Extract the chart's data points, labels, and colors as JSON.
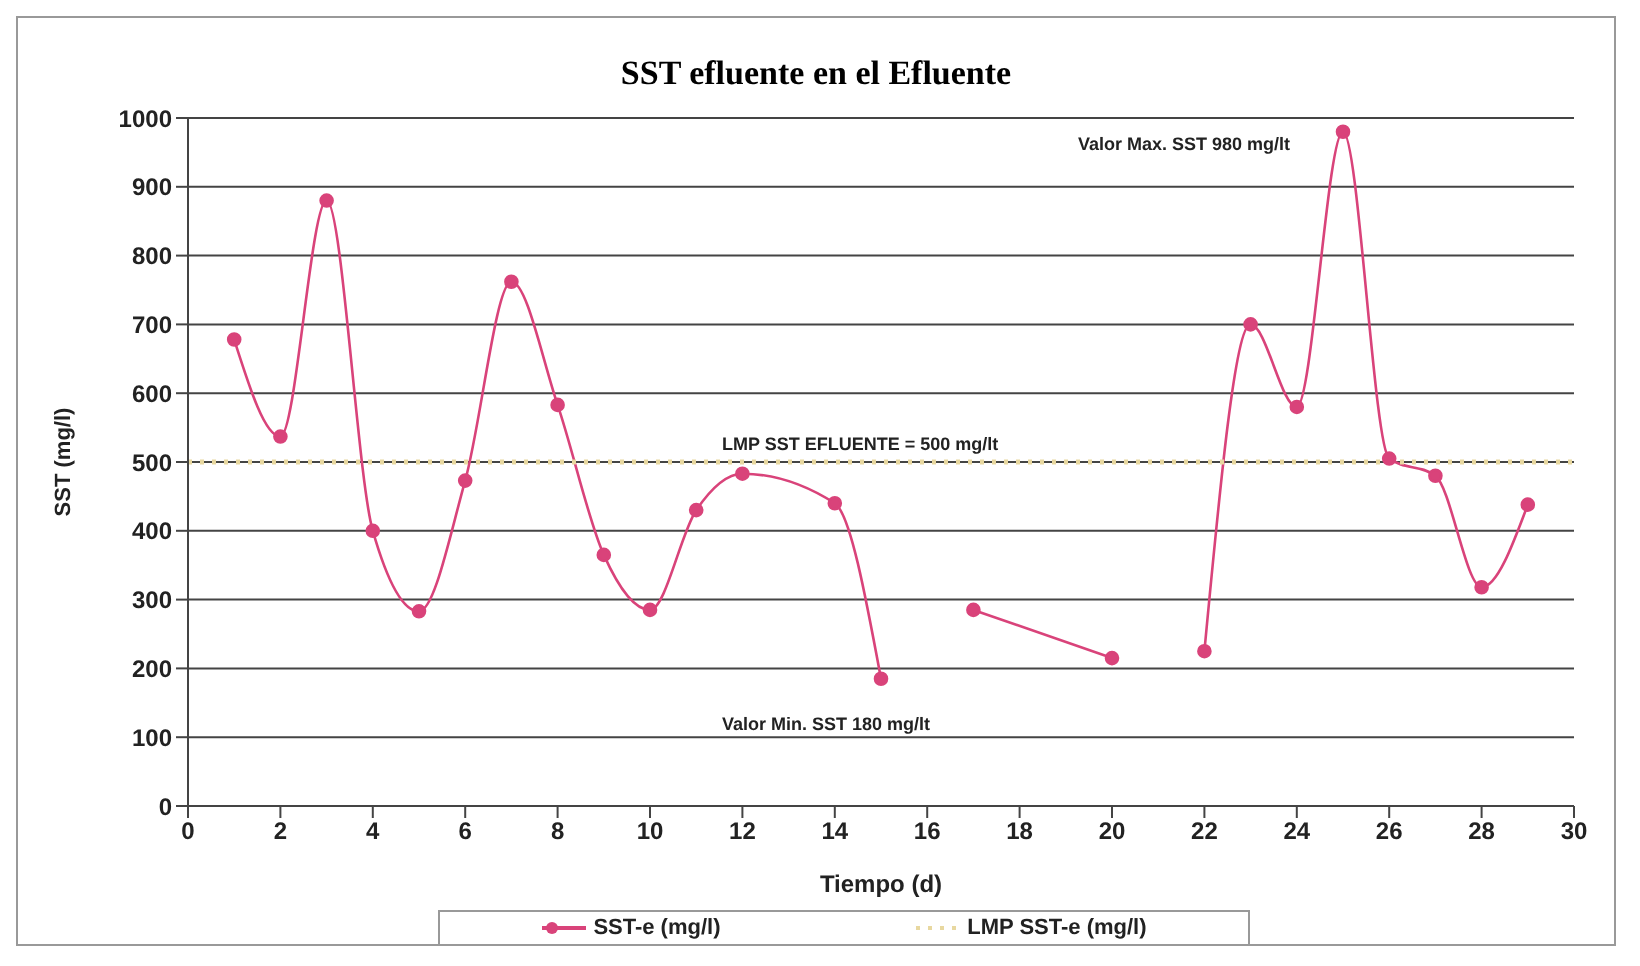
{
  "chart_data": {
    "type": "line",
    "title": "SST efluente en el Efluente",
    "xlabel": "Tiempo (d)",
    "ylabel": "SST (mg/l)",
    "xlim": [
      0,
      30
    ],
    "xticks": [
      0,
      2,
      4,
      6,
      8,
      10,
      12,
      14,
      16,
      18,
      20,
      22,
      24,
      26,
      28,
      30
    ],
    "ylim": [
      0,
      1000
    ],
    "yticks": [
      0,
      100,
      200,
      300,
      400,
      500,
      600,
      700,
      800,
      900,
      1000
    ],
    "grid": "y",
    "legend": "bottom",
    "marker": "circle",
    "series": [
      {
        "name": "SST-e (mg/l)",
        "color": "#d9437a",
        "x": [
          1,
          2,
          3,
          4,
          5,
          6,
          7,
          8,
          9,
          10,
          11,
          12,
          14,
          15,
          16,
          17,
          20,
          21,
          22,
          23,
          24,
          25,
          26,
          27,
          28,
          29
        ],
        "values": [
          678,
          537,
          880,
          400,
          283,
          473,
          762,
          583,
          365,
          285,
          430,
          483,
          440,
          185,
          null,
          285,
          215,
          null,
          225,
          700,
          580,
          980,
          505,
          480,
          318,
          438
        ]
      },
      {
        "name": "LMP SST-e (mg/l)",
        "color": "#e8d8a0",
        "x": [
          0,
          30
        ],
        "values": [
          500,
          500
        ],
        "line_style": "dotted",
        "marker": "none"
      }
    ],
    "annotations": [
      "Valor Max. SST 980 mg/lt",
      "LMP SST EFLUENTE = 500 mg/lt",
      "Valor Min. SST 180 mg/lt"
    ]
  }
}
